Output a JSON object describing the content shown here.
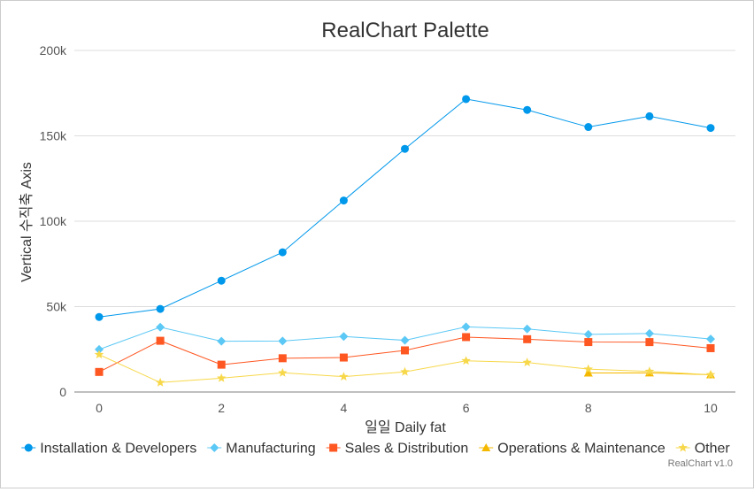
{
  "chart_data": {
    "type": "line",
    "title": "RealChart Palette",
    "xlabel": "일일 Daily fat",
    "ylabel": "Vertical 수직축 Axis",
    "x": [
      0,
      1,
      2,
      3,
      4,
      5,
      6,
      7,
      8,
      9,
      10
    ],
    "x_ticks": [
      "0",
      "2",
      "4",
      "6",
      "8",
      "10"
    ],
    "y_ticks": [
      "0",
      "50k",
      "100k",
      "150k",
      "200k"
    ],
    "xlim": [
      0,
      10
    ],
    "ylim": [
      0,
      200000
    ],
    "grid": true,
    "legend_position": "bottom",
    "credit": "RealChart v1.0",
    "series": [
      {
        "name": "Installation & Developers",
        "color": "#0098eb",
        "marker": "circle",
        "x": [
          0,
          1,
          2,
          3,
          4,
          5,
          6,
          7,
          8,
          9,
          10
        ],
        "values": [
          43934,
          48656,
          65165,
          81827,
          112143,
          142383,
          171533,
          165174,
          155157,
          161454,
          154610
        ]
      },
      {
        "name": "Manufacturing",
        "color": "#5bc8f5",
        "marker": "diamond",
        "x": [
          0,
          1,
          2,
          3,
          4,
          5,
          6,
          7,
          8,
          9,
          10
        ],
        "values": [
          24916,
          37941,
          29742,
          29851,
          32490,
          30282,
          38121,
          36885,
          33726,
          34243,
          31050
        ]
      },
      {
        "name": "Sales & Distribution",
        "color": "#ff5722",
        "marker": "square",
        "x": [
          0,
          1,
          2,
          3,
          4,
          5,
          6,
          7,
          8,
          9,
          10
        ],
        "values": [
          11744,
          30000,
          16005,
          19771,
          20185,
          24377,
          32147,
          30912,
          29243,
          29213,
          25663
        ]
      },
      {
        "name": "Operations & Maintenance",
        "color": "#f5b800",
        "marker": "triangle",
        "x": [
          8,
          9,
          10
        ],
        "values": [
          11164,
          11218,
          10077
        ]
      },
      {
        "name": "Other",
        "color": "#f7d84a",
        "marker": "star",
        "x": [
          0,
          1,
          2,
          3,
          4,
          5,
          6,
          7,
          8,
          9,
          10
        ],
        "values": [
          21908,
          5548,
          8105,
          11248,
          8989,
          11816,
          18274,
          17300,
          13391,
          12075,
          10100
        ]
      }
    ]
  }
}
